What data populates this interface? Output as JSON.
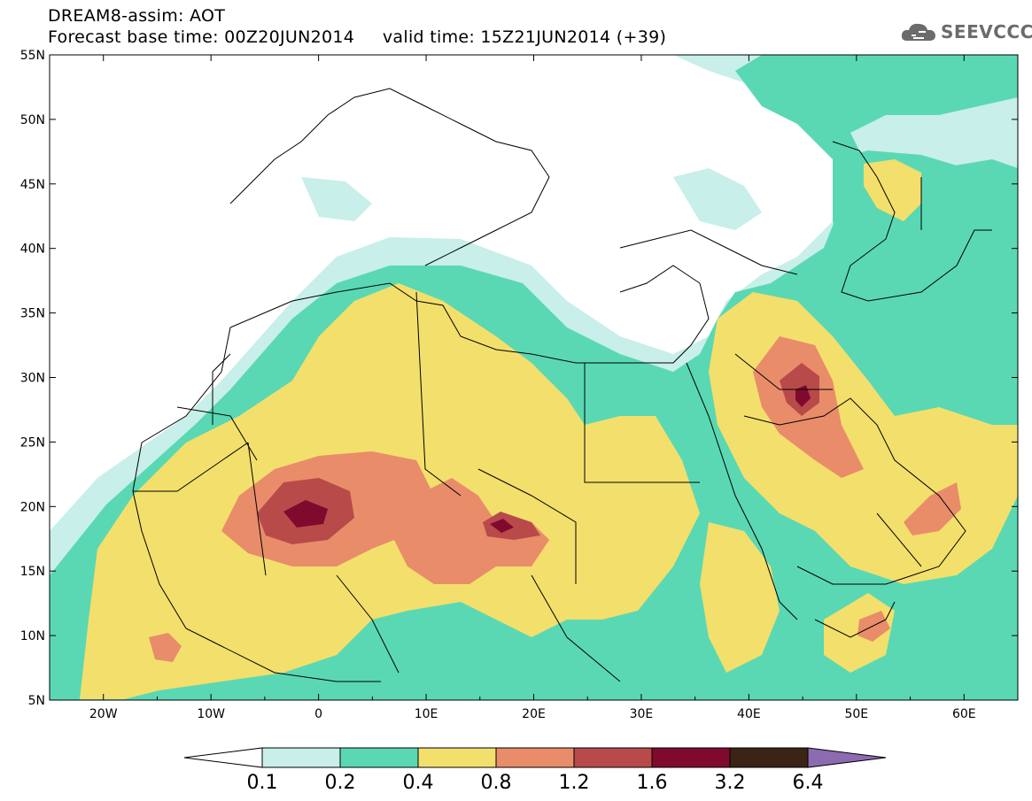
{
  "header": {
    "title": "DREAM8-assim: AOT",
    "forecast_base": "Forecast base time: 00Z20JUN2014",
    "valid_time": "valid time: 15Z21JUN2014 (+39)"
  },
  "logo": {
    "text": "SEEVCCC",
    "icon": "cloud-icon"
  },
  "map": {
    "region": "North Africa / Middle East",
    "lon_range": [
      -25,
      65
    ],
    "lat_range": [
      5,
      55
    ],
    "lat_labels": [
      "55N",
      "50N",
      "45N",
      "40N",
      "35N",
      "30N",
      "25N",
      "20N",
      "15N",
      "10N",
      "5N"
    ],
    "lon_labels": [
      "20W",
      "10W",
      "0",
      "10E",
      "20E",
      "30E",
      "40E",
      "50E",
      "60E"
    ]
  },
  "colorbar": {
    "labels": [
      "0.1",
      "0.2",
      "0.4",
      "0.8",
      "1.2",
      "1.6",
      "3.2",
      "6.4"
    ],
    "colors": [
      "#ffffff",
      "#c8efe9",
      "#5ad8b4",
      "#f3df6c",
      "#e98c6a",
      "#b84a4a",
      "#7f0a2e",
      "#3b2316",
      "#8c6bb1"
    ]
  },
  "aot_levels": {
    "lowest": "#c8efe9",
    "low": "#5ad8b4",
    "moderate": "#f3df6c",
    "high": "#e98c6a",
    "very_high": "#b84a4a",
    "extreme": "#7f0a2e"
  }
}
